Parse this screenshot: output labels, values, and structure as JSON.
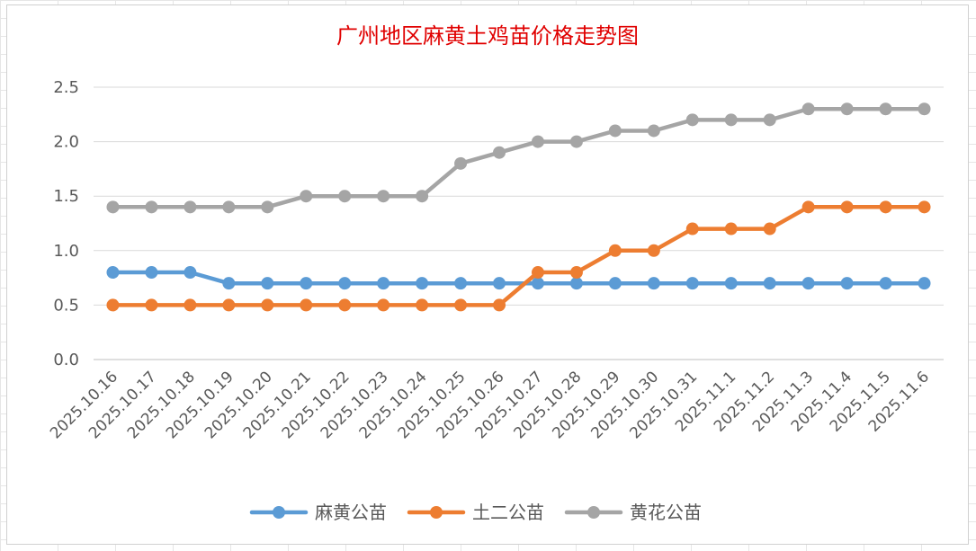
{
  "chart_data": {
    "type": "line",
    "title": "广州地区麻黄土鸡苗价格走势图",
    "xlabel": "",
    "ylabel": "",
    "ylim": [
      0,
      2.5
    ],
    "yticks": [
      "0.0",
      "0.5",
      "1.0",
      "1.5",
      "2.0",
      "2.5"
    ],
    "grid": true,
    "legend_position": "bottom",
    "categories": [
      "2025.10.16",
      "2025.10.17",
      "2025.10.18",
      "2025.10.19",
      "2025.10.20",
      "2025.10.21",
      "2025.10.22",
      "2025.10.23",
      "2025.10.24",
      "2025.10.25",
      "2025.10.26",
      "2025.10.27",
      "2025.10.28",
      "2025.10.29",
      "2025.10.30",
      "2025.10.31",
      "2025.11.1",
      "2025.11.2",
      "2025.11.3",
      "2025.11.4",
      "2025.11.5",
      "2025.11.6"
    ],
    "series": [
      {
        "name": "麻黄公苗",
        "color": "#5b9bd5",
        "values": [
          0.8,
          0.8,
          0.8,
          0.7,
          0.7,
          0.7,
          0.7,
          0.7,
          0.7,
          0.7,
          0.7,
          0.7,
          0.7,
          0.7,
          0.7,
          0.7,
          0.7,
          0.7,
          0.7,
          0.7,
          0.7,
          0.7
        ]
      },
      {
        "name": "土二公苗",
        "color": "#ed7d31",
        "values": [
          0.5,
          0.5,
          0.5,
          0.5,
          0.5,
          0.5,
          0.5,
          0.5,
          0.5,
          0.5,
          0.5,
          0.8,
          0.8,
          1.0,
          1.0,
          1.2,
          1.2,
          1.2,
          1.4,
          1.4,
          1.4,
          1.4
        ]
      },
      {
        "name": "黄花公苗",
        "color": "#a5a5a5",
        "values": [
          1.4,
          1.4,
          1.4,
          1.4,
          1.4,
          1.5,
          1.5,
          1.5,
          1.5,
          1.8,
          1.9,
          2.0,
          2.0,
          2.1,
          2.1,
          2.2,
          2.2,
          2.2,
          2.3,
          2.3,
          2.3,
          2.3
        ]
      }
    ]
  }
}
